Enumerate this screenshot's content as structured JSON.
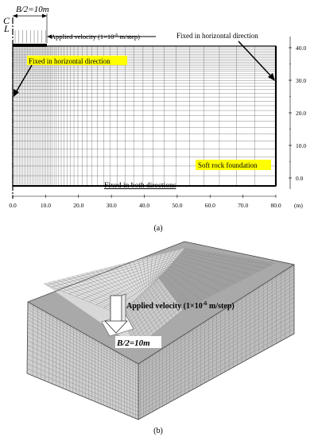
{
  "panel_a": {
    "half_width_label": "B/2=10m",
    "centerline_c": "C",
    "centerline_l": "L",
    "applied_velocity": "Applied velocity (1×10",
    "applied_velocity_exp": "-6",
    "applied_velocity_end": " m/step)",
    "fixed_horizontal_right": "Fixed in horizontal direction",
    "fixed_horizontal_left": "Fixed in horizontal direction",
    "soft_rock": "Soft rock foundation",
    "fixed_both": "Fixed in both directions",
    "x_ticks": [
      "0.0",
      "10.0",
      "20.0",
      "30.0",
      "40.0",
      "50.0",
      "60.0",
      "70.0",
      "80.0"
    ],
    "x_unit": "(m)",
    "y_ticks": [
      "0.0",
      "10.0",
      "20.0",
      "30.0",
      "40.0"
    ],
    "caption": "(a)",
    "highlight_color": "#ffff00"
  },
  "panel_b": {
    "applied_velocity": "Applied velocity (1×10",
    "applied_velocity_exp": "-6",
    "applied_velocity_end": " m/step)",
    "half_width_label": "B/2=10m",
    "caption": "(b)",
    "mesh_color": "#8c8c8c"
  }
}
